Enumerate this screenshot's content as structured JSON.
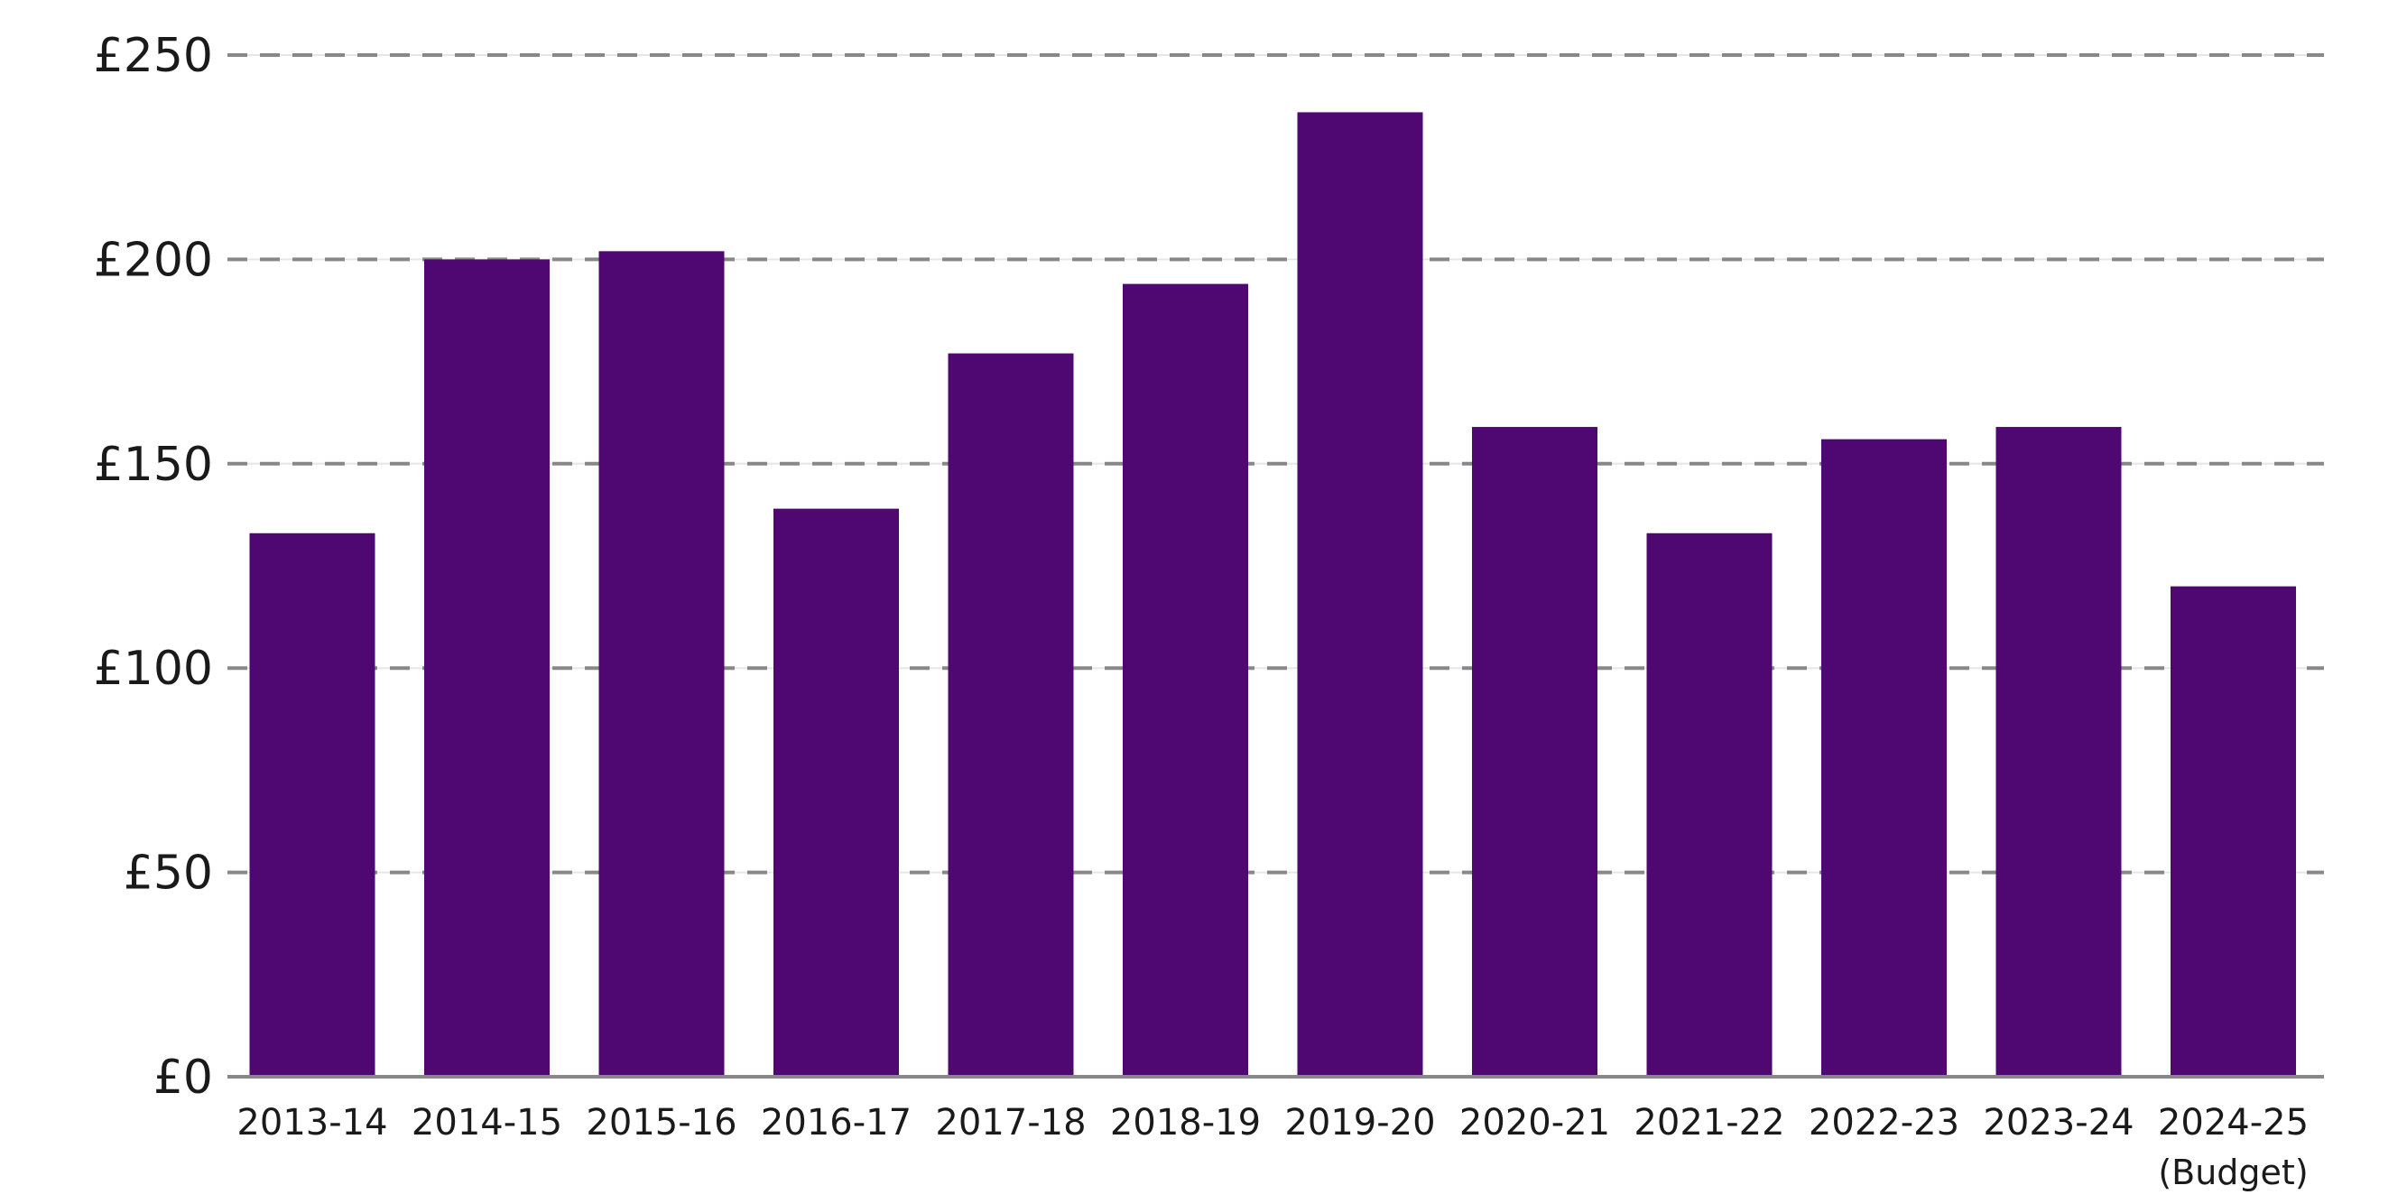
{
  "chart_data": {
    "type": "bar",
    "title": "",
    "xlabel": "",
    "ylabel": "",
    "categories": [
      "2013-14",
      "2014-15",
      "2015-16",
      "2016-17",
      "2017-18",
      "2018-19",
      "2019-20",
      "2020-21",
      "2021-22",
      "2022-23",
      "2023-24",
      "2024-25"
    ],
    "category_sublabels": [
      "",
      "",
      "",
      "",
      "",
      "",
      "",
      "",
      "",
      "",
      "",
      "(Budget)"
    ],
    "series": [
      {
        "values": [
          133,
          200,
          202,
          139,
          177,
          194,
          236,
          159,
          133,
          156,
          159,
          120
        ]
      }
    ],
    "ylim": [
      0,
      250
    ],
    "yticks": [
      0,
      50,
      100,
      150,
      200,
      250
    ],
    "ytick_labels": [
      "£0",
      "£50",
      "£100",
      "£150",
      "£200",
      "£250"
    ],
    "grid": true,
    "grid_style": "dashed",
    "legend": "none",
    "colors": {
      "bar": "#4f0872",
      "grid": "#888888",
      "axis": "#888888"
    }
  }
}
